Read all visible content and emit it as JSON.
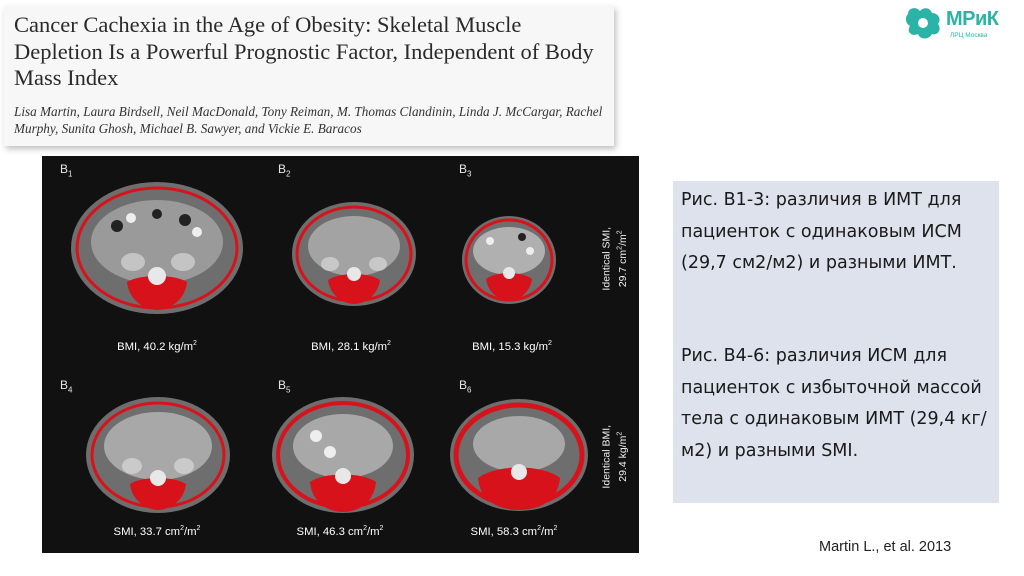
{
  "paper": {
    "title": "Cancer Cachexia in the Age of Obesity: Skeletal Muscle Depletion Is a Powerful Prognostic Factor, Independent of Body Mass Index",
    "authors": "Lisa Martin, Laura Birdsell, Neil MacDonald, Tony Reiman, M. Thomas Clandinin, Linda J. McCargar, Rachel Murphy, Sunita Ghosh, Michael B. Sawyer, and Vickie E. Baracos"
  },
  "logo": {
    "text": "МРиК",
    "subtext": "ЛРЦ Москва",
    "color": "#2ab3a6"
  },
  "figure": {
    "panels": [
      {
        "label": "B",
        "sub": "1",
        "caption_prefix": "BMI, 40.2 kg/m",
        "caption_sup": "2"
      },
      {
        "label": "B",
        "sub": "2",
        "caption_prefix": "BMI, 28.1 kg/m",
        "caption_sup": "2"
      },
      {
        "label": "B",
        "sub": "3",
        "caption_prefix": "BMI, 15.3 kg/m",
        "caption_sup": "2"
      },
      {
        "label": "B",
        "sub": "4",
        "caption_prefix": "SMI, 33.7 cm",
        "caption_mid": "/m",
        "caption_sup": "2"
      },
      {
        "label": "B",
        "sub": "5",
        "caption_prefix": "SMI, 46.3 cm",
        "caption_mid": "/m",
        "caption_sup": "2"
      },
      {
        "label": "B",
        "sub": "6",
        "caption_prefix": "SMI, 58.3 cm",
        "caption_mid": "/m",
        "caption_sup": "2"
      }
    ],
    "side_labels": [
      {
        "line1": "Identical SMI,",
        "line2_prefix": "29.7 cm",
        "line2_mid": "/m",
        "line2_sup": "2"
      },
      {
        "line1": "Identical BMI,",
        "line2_prefix": "29.4 kg/m",
        "line2_sup": "2"
      }
    ],
    "muscle_color": "#d8121b"
  },
  "info": {
    "paragraph1": "Рис. В1-3: различия в ИМТ для пациенток с одинаковым ИСМ (29,7 см2/м2) и разными ИМТ.",
    "paragraph2": "Рис. В4-6: различия ИСМ для пациенток с избыточной массой тела с одинаковым ИМТ (29,4 кг/м2) и разными SMI."
  },
  "citation": "Martin L., et al. 2013"
}
